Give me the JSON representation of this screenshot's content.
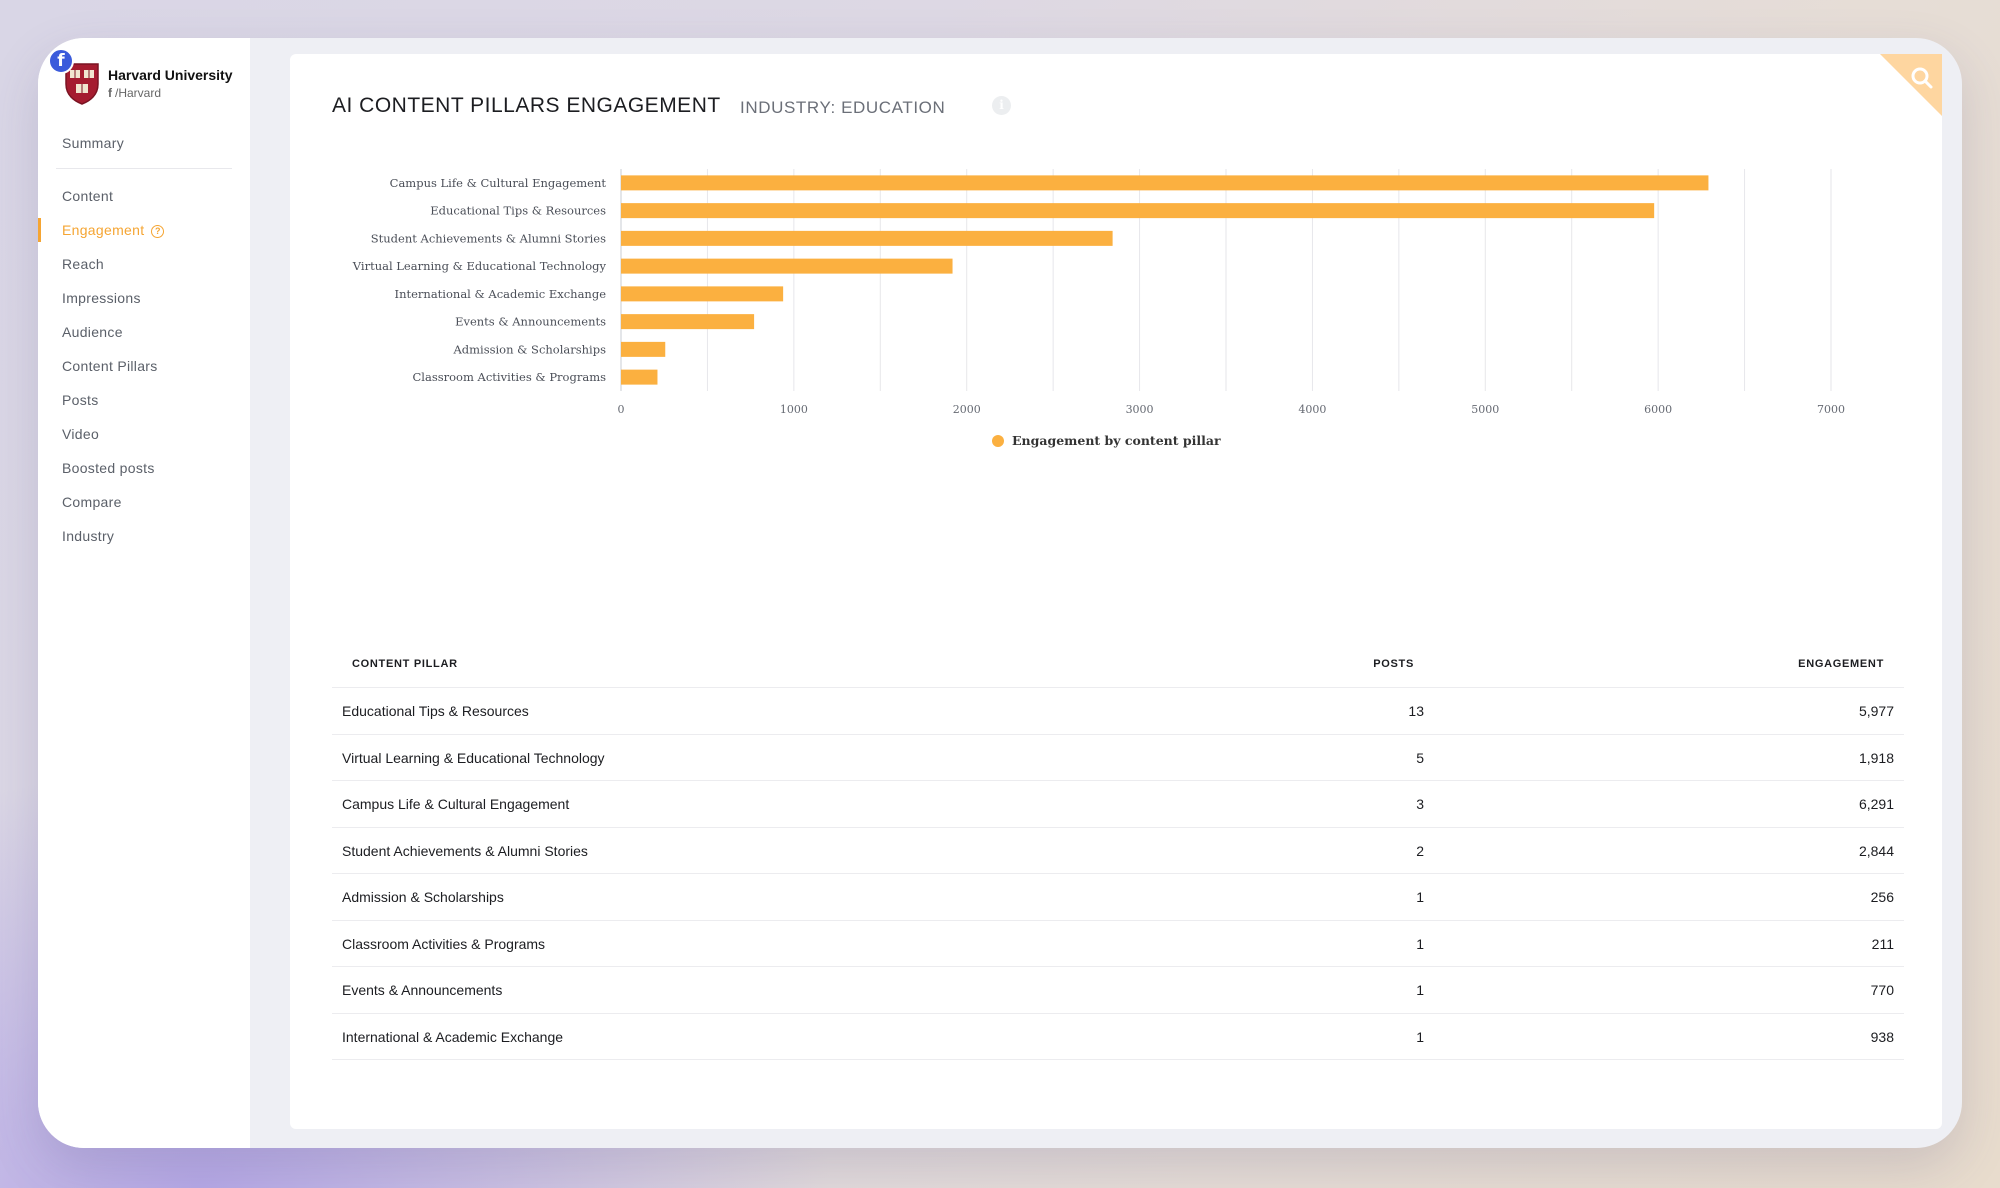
{
  "profile": {
    "network_icon": "facebook-icon",
    "name": "Harvard University",
    "handle": "/Harvard"
  },
  "nav": {
    "items": [
      {
        "label": "Summary"
      },
      {
        "label": "Content"
      },
      {
        "label": "Engagement",
        "active": true,
        "icon": "help-icon"
      },
      {
        "label": "Reach"
      },
      {
        "label": "Impressions"
      },
      {
        "label": "Audience"
      },
      {
        "label": "Content Pillars"
      },
      {
        "label": "Posts"
      },
      {
        "label": "Video"
      },
      {
        "label": "Boosted posts"
      },
      {
        "label": "Compare"
      },
      {
        "label": "Industry"
      }
    ]
  },
  "card": {
    "title": "AI CONTENT PILLARS ENGAGEMENT",
    "subtitle": "INDUSTRY: EDUCATION",
    "info_icon": "info-icon",
    "corner_icon": "search-icon"
  },
  "colors": {
    "accent": "#f5a533",
    "bar": "#fbb040",
    "corner": "#fed6a0"
  },
  "chart_data": {
    "type": "bar",
    "orientation": "horizontal",
    "categories": [
      "Campus Life & Cultural Engagement",
      "Educational Tips & Resources",
      "Student Achievements & Alumni Stories",
      "Virtual Learning & Educational Technology",
      "International & Academic Exchange",
      "Events & Announcements",
      "Admission & Scholarships",
      "Classroom Activities & Programs"
    ],
    "series": [
      {
        "name": "Engagement by content pillar",
        "values": [
          6291,
          5977,
          2844,
          1918,
          938,
          770,
          256,
          211
        ]
      }
    ],
    "xlim": [
      0,
      7000
    ],
    "x_ticks": [
      "0",
      "1000",
      "2000",
      "3000",
      "4000",
      "5000",
      "6000",
      "7000"
    ],
    "grid": true,
    "legend": "bottom-center"
  },
  "table": {
    "headers": {
      "pillar": "CONTENT PILLAR",
      "posts": "POSTS",
      "engagement": "ENGAGEMENT"
    },
    "rows": [
      {
        "pillar": "Educational Tips & Resources",
        "posts": "13",
        "engagement": "5,977"
      },
      {
        "pillar": "Virtual Learning & Educational Technology",
        "posts": "5",
        "engagement": "1,918"
      },
      {
        "pillar": "Campus Life & Cultural Engagement",
        "posts": "3",
        "engagement": "6,291"
      },
      {
        "pillar": "Student Achievements & Alumni Stories",
        "posts": "2",
        "engagement": "2,844"
      },
      {
        "pillar": "Admission & Scholarships",
        "posts": "1",
        "engagement": "256"
      },
      {
        "pillar": "Classroom Activities & Programs",
        "posts": "1",
        "engagement": "211"
      },
      {
        "pillar": "Events & Announcements",
        "posts": "1",
        "engagement": "770"
      },
      {
        "pillar": "International & Academic Exchange",
        "posts": "1",
        "engagement": "938"
      }
    ]
  }
}
